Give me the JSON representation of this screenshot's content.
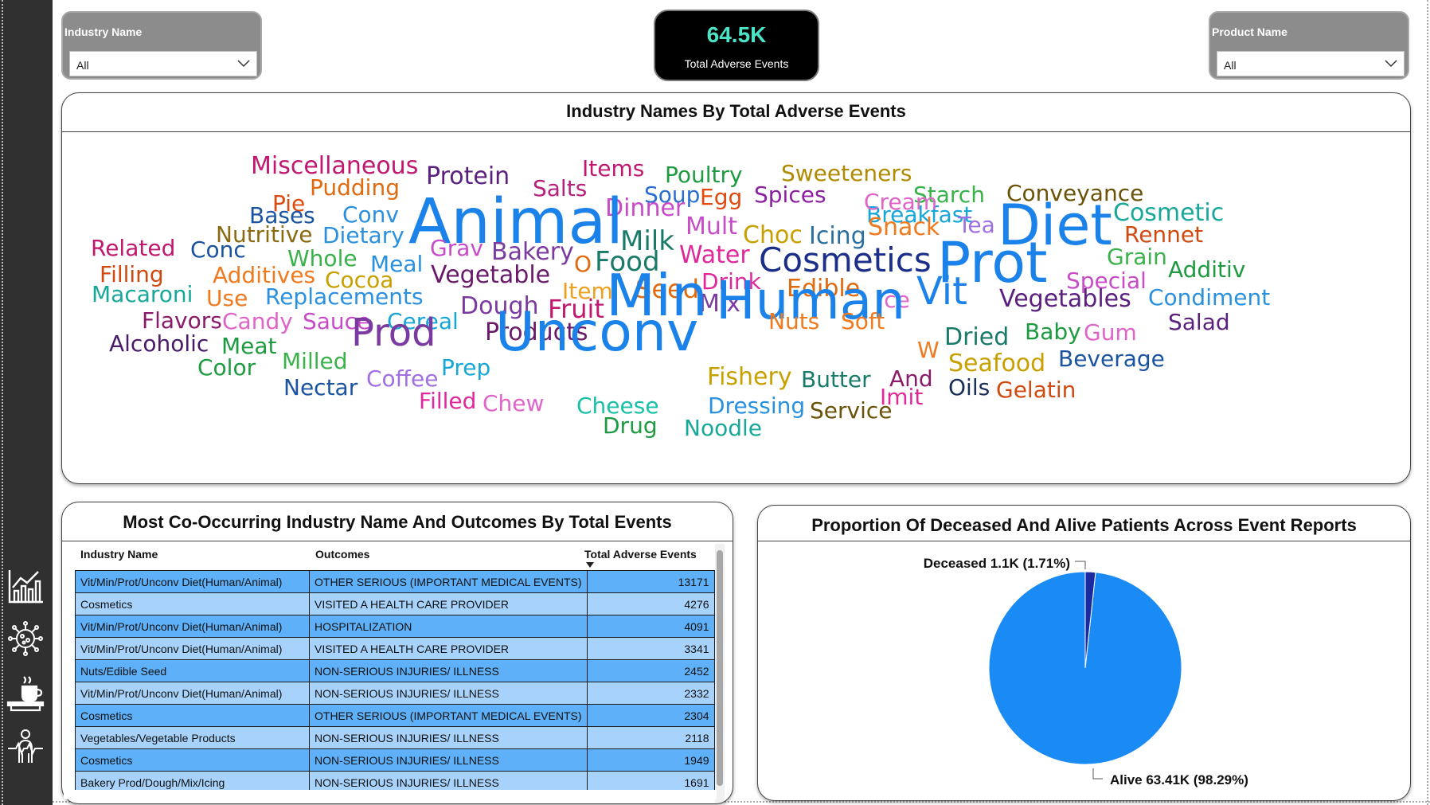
{
  "filters": {
    "industry": {
      "label": "Industry Name",
      "value": "All"
    },
    "product": {
      "label": "Product Name",
      "value": "All"
    }
  },
  "kpi": {
    "value": "64.5K",
    "label": "Total Adverse Events"
  },
  "wordcloud": {
    "title": "Industry Names By Total Adverse Events",
    "words": [
      {
        "text": "Miscellaneous",
        "color": "#c0176f"
      },
      {
        "text": "Protein",
        "color": "#5b1f7e"
      },
      {
        "text": "Items",
        "color": "#c0176f"
      },
      {
        "text": "Poultry",
        "color": "#1e9a40"
      },
      {
        "text": "Sweeteners",
        "color": "#b08a00"
      },
      {
        "text": "Pudding",
        "color": "#e06a10"
      },
      {
        "text": "Salts",
        "color": "#b8217b"
      },
      {
        "text": "Soup",
        "color": "#2a6fd0"
      },
      {
        "text": "Egg",
        "color": "#e04a10"
      },
      {
        "text": "Spices",
        "color": "#8a1fa0"
      },
      {
        "text": "Starch",
        "color": "#3ab24a"
      },
      {
        "text": "Conveyance",
        "color": "#6a5208"
      },
      {
        "text": "Pie",
        "color": "#e04a10"
      },
      {
        "text": "Dinner",
        "color": "#c84bc8"
      },
      {
        "text": "Breakfast",
        "color": "#17a6d8"
      },
      {
        "text": "Cream",
        "color": "#e064c8"
      },
      {
        "text": "Bases",
        "color": "#1a54a0"
      },
      {
        "text": "Conv",
        "color": "#2a90e0"
      },
      {
        "text": "Animal",
        "color": "#1a82e8"
      },
      {
        "text": "Diet",
        "color": "#1a82e8"
      },
      {
        "text": "Cosmetic",
        "color": "#18a89a"
      },
      {
        "text": "Tea",
        "color": "#a070e0"
      },
      {
        "text": "Mult",
        "color": "#c84bc8"
      },
      {
        "text": "Choc",
        "color": "#c8a000"
      },
      {
        "text": "Icing",
        "color": "#2a6fa0"
      },
      {
        "text": "Snack",
        "color": "#f07a20"
      },
      {
        "text": "Rennet",
        "color": "#d04a10"
      },
      {
        "text": "Nutritive",
        "color": "#8a6a10"
      },
      {
        "text": "Dietary",
        "color": "#2a90e0"
      },
      {
        "text": "Milk",
        "color": "#1a7a6a"
      },
      {
        "text": "Related",
        "color": "#c0176f"
      },
      {
        "text": "Conc",
        "color": "#1a54a0"
      },
      {
        "text": "Grav",
        "color": "#c84bc8"
      },
      {
        "text": "Bakery",
        "color": "#7a3aa0"
      },
      {
        "text": "Water",
        "color": "#e0289a"
      },
      {
        "text": "Cosmetics",
        "color": "#1a2e8a"
      },
      {
        "text": "Prot",
        "color": "#1a82e8"
      },
      {
        "text": "Grain",
        "color": "#3ab24a"
      },
      {
        "text": "Additiv",
        "color": "#1e9a40"
      },
      {
        "text": "Whole",
        "color": "#3ab24a"
      },
      {
        "text": "Meal",
        "color": "#2a90e0"
      },
      {
        "text": "O",
        "color": "#e06a10"
      },
      {
        "text": "Food",
        "color": "#1a7a6a"
      },
      {
        "text": "Filling",
        "color": "#d04a10"
      },
      {
        "text": "Additives",
        "color": "#f07a20"
      },
      {
        "text": "Cocoa",
        "color": "#c8a000"
      },
      {
        "text": "Vegetable",
        "color": "#6a1a6a"
      },
      {
        "text": "Drink",
        "color": "#e0289a"
      },
      {
        "text": "Special",
        "color": "#c84bc8"
      },
      {
        "text": "Macaroni",
        "color": "#18a89a"
      },
      {
        "text": "Item",
        "color": "#f0a020"
      },
      {
        "text": "Seed",
        "color": "#e06a10"
      },
      {
        "text": "Edible",
        "color": "#e06a10"
      },
      {
        "text": "Vit",
        "color": "#1a82e8"
      },
      {
        "text": "Condiment",
        "color": "#2a90e0"
      },
      {
        "text": "Use",
        "color": "#f07a20"
      },
      {
        "text": "Replacements",
        "color": "#2a90e0"
      },
      {
        "text": "Mix",
        "color": "#7a3aa0"
      },
      {
        "text": "Ice",
        "color": "#e064c8"
      },
      {
        "text": "Vegetables",
        "color": "#5b1f7e"
      },
      {
        "text": "Dough",
        "color": "#7a3aa0"
      },
      {
        "text": "Fruit",
        "color": "#c0176f"
      },
      {
        "text": "Flavors",
        "color": "#8a1a6a"
      },
      {
        "text": "Candy",
        "color": "#e064c8"
      },
      {
        "text": "Sauce",
        "color": "#c84bc8"
      },
      {
        "text": "Cereal",
        "color": "#17a6d8"
      },
      {
        "text": "Min",
        "color": "#1a82e8"
      },
      {
        "text": "Human",
        "color": "#1a82e8"
      },
      {
        "text": "Nuts",
        "color": "#f07a20"
      },
      {
        "text": "Soft",
        "color": "#f07a20"
      },
      {
        "text": "Salad",
        "color": "#5b1f7e"
      },
      {
        "text": "Products",
        "color": "#6a1a6a"
      },
      {
        "text": "Dried",
        "color": "#1a7a6a"
      },
      {
        "text": "Baby",
        "color": "#1e9a40"
      },
      {
        "text": "Gum",
        "color": "#e064c8"
      },
      {
        "text": "Alcoholic",
        "color": "#4a1a6a"
      },
      {
        "text": "Meat",
        "color": "#1e9a40"
      },
      {
        "text": "Prod",
        "color": "#7a3aa0"
      },
      {
        "text": "W",
        "color": "#f07a20"
      },
      {
        "text": "Beverage",
        "color": "#1a54a0"
      },
      {
        "text": "Milled",
        "color": "#3ab24a"
      },
      {
        "text": "Unconv",
        "color": "#1a82e8"
      },
      {
        "text": "Seafood",
        "color": "#c8a000"
      },
      {
        "text": "Color",
        "color": "#1e9a40"
      },
      {
        "text": "Prep",
        "color": "#17a6d8"
      },
      {
        "text": "Coffee",
        "color": "#a070e0"
      },
      {
        "text": "Fishery",
        "color": "#c8a000"
      },
      {
        "text": "Butter",
        "color": "#1a7a6a"
      },
      {
        "text": "And",
        "color": "#8a1a6a"
      },
      {
        "text": "Nectar",
        "color": "#1a54a0"
      },
      {
        "text": "Oils",
        "color": "#1a2e5a"
      },
      {
        "text": "Gelatin",
        "color": "#d04a10"
      },
      {
        "text": "Imit",
        "color": "#e0289a"
      },
      {
        "text": "Filled",
        "color": "#e0289a"
      },
      {
        "text": "Chew",
        "color": "#e064c8"
      },
      {
        "text": "Cheese",
        "color": "#18c0a8"
      },
      {
        "text": "Dressing",
        "color": "#2a90e0"
      },
      {
        "text": "Service",
        "color": "#6a5208"
      },
      {
        "text": "Drug",
        "color": "#1e9a40"
      },
      {
        "text": "Noodle",
        "color": "#18a89a"
      }
    ]
  },
  "table": {
    "title": "Most Co-Occurring Industry Name And Outcomes By Total Events",
    "columns": [
      "Industry Name",
      "Outcomes",
      "Total Adverse Events"
    ],
    "rows": [
      [
        "Vit/Min/Prot/Unconv Diet(Human/Animal)",
        "OTHER SERIOUS (IMPORTANT MEDICAL EVENTS)",
        "13171"
      ],
      [
        "Cosmetics",
        "VISITED A HEALTH CARE PROVIDER",
        "4276"
      ],
      [
        "Vit/Min/Prot/Unconv Diet(Human/Animal)",
        "HOSPITALIZATION",
        "4091"
      ],
      [
        "Vit/Min/Prot/Unconv Diet(Human/Animal)",
        "VISITED A HEALTH CARE PROVIDER",
        "3341"
      ],
      [
        "Nuts/Edible Seed",
        "NON-SERIOUS INJURIES/ ILLNESS",
        "2452"
      ],
      [
        "Vit/Min/Prot/Unconv Diet(Human/Animal)",
        "NON-SERIOUS INJURIES/ ILLNESS",
        "2332"
      ],
      [
        "Cosmetics",
        "OTHER SERIOUS (IMPORTANT MEDICAL EVENTS)",
        "2304"
      ],
      [
        "Vegetables/Vegetable Products",
        "NON-SERIOUS INJURIES/ ILLNESS",
        "2118"
      ],
      [
        "Cosmetics",
        "NON-SERIOUS INJURIES/ ILLNESS",
        "1949"
      ],
      [
        "Bakery Prod/Dough/Mix/Icing",
        "NON-SERIOUS INJURIES/ ILLNESS",
        "1691"
      ]
    ]
  },
  "pie": {
    "title": "Proportion Of Deceased And Alive Patients Across Event Reports",
    "deceased_label": "Deceased 1.1K (1.71%)",
    "alive_label": "Alive 63.41K (98.29%)",
    "colors": {
      "alive": "#1a8af5",
      "deceased": "#1a2aa0"
    }
  },
  "chart_data": {
    "type": "pie",
    "title": "Proportion Of Deceased And Alive Patients Across Event Reports",
    "labels": [
      "Deceased",
      "Alive"
    ],
    "values": [
      1.71,
      98.29
    ],
    "display_values": [
      "1.1K",
      "63.41K"
    ]
  },
  "nav": {
    "icons": [
      "line-chart-icon",
      "virus-icon",
      "food-tray-icon",
      "person-health-icon"
    ]
  }
}
